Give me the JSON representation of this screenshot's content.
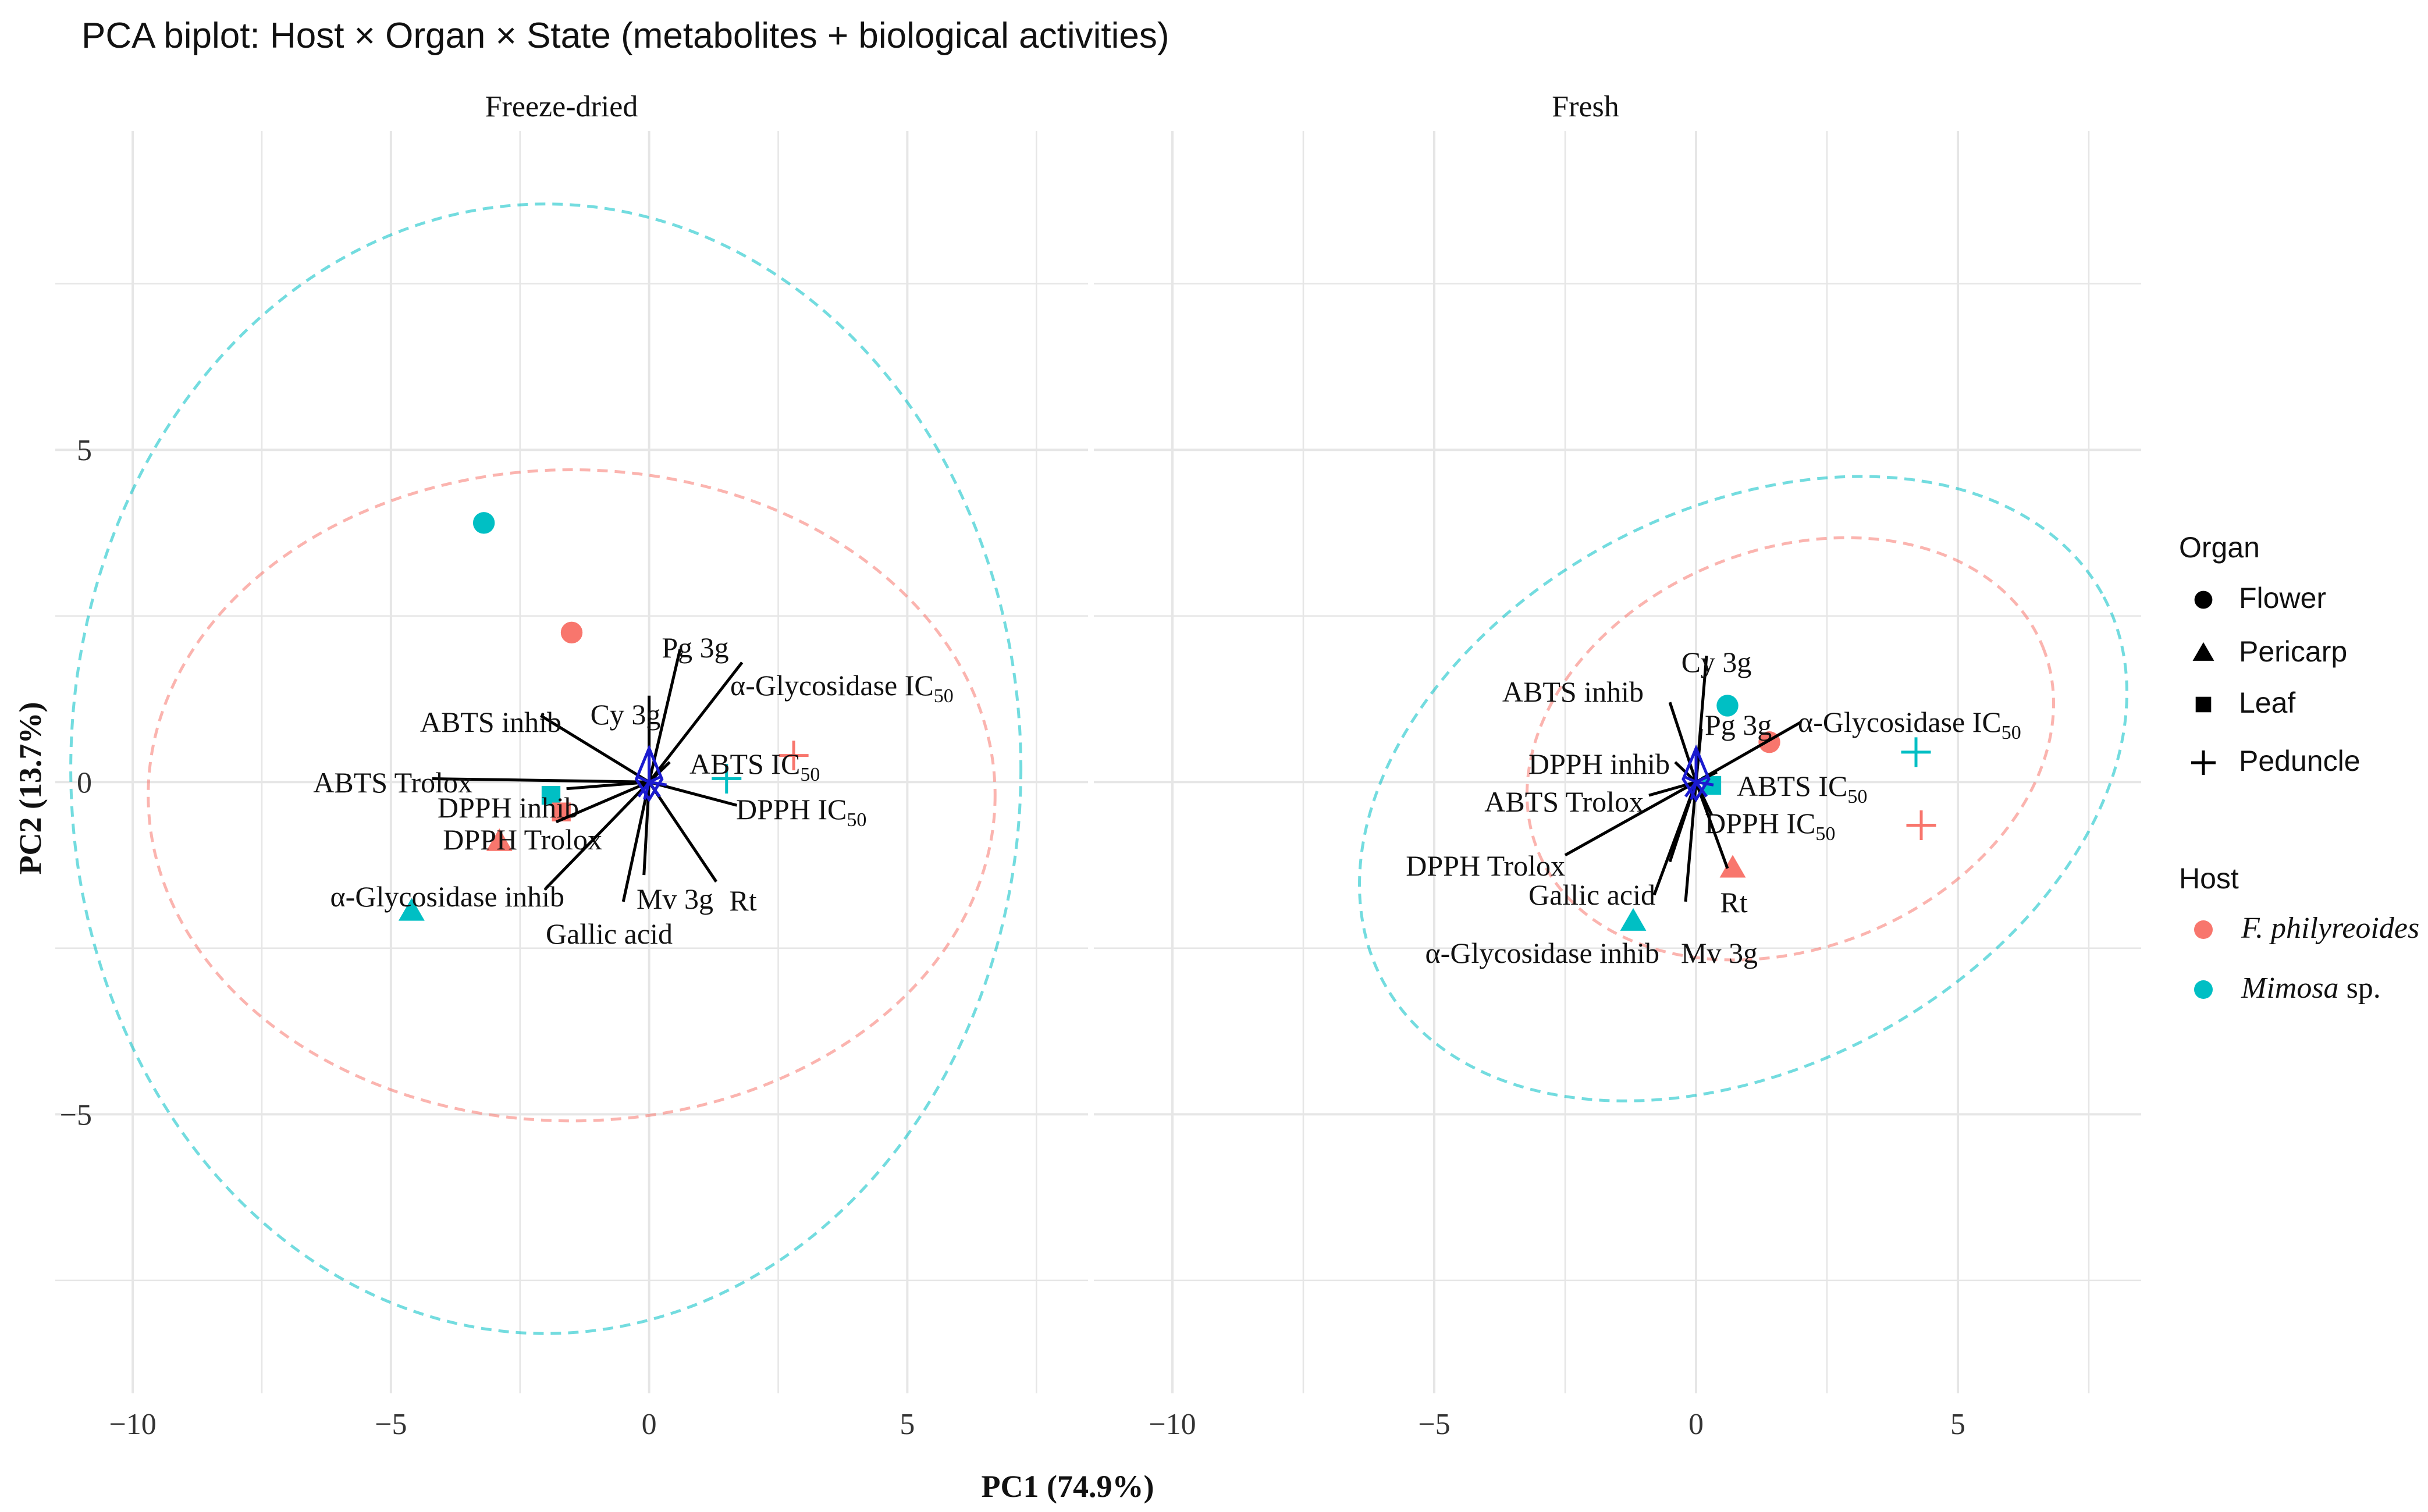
{
  "title": "PCA biplot: Host × Organ × State (metabolites + biological activities)",
  "x_label": "PC1 (74.9%)",
  "y_label": "PC2 (13.7%)",
  "colors": {
    "fphil": "#F8766D",
    "mimosa": "#00BFC4",
    "arrow": "#000000",
    "vector": "#1A1ACF",
    "grid": "#E6E6E6"
  },
  "chart_data": [
    {
      "type": "scatter",
      "subtype": "pca-biplot",
      "facet": "Freeze-dried",
      "xlim": [
        -11.5,
        8.5
      ],
      "ylim": [
        -9.2,
        9.8
      ],
      "x_ticks": [
        {
          "value": -10,
          "label": "−10"
        },
        {
          "value": -5,
          "label": "−5"
        },
        {
          "value": 0,
          "label": "0"
        },
        {
          "value": 5,
          "label": "5"
        }
      ],
      "y_ticks": [
        {
          "value": 5,
          "label": "5"
        },
        {
          "value": 0,
          "label": "0"
        },
        {
          "value": -5,
          "label": "−5"
        }
      ],
      "points": [
        {
          "host": "Mimosa sp.",
          "organ": "Flower",
          "x": -3.2,
          "y": 3.9
        },
        {
          "host": "F. philyreoides",
          "organ": "Flower",
          "x": -1.5,
          "y": 2.25
        },
        {
          "host": "Mimosa sp.",
          "organ": "Leaf",
          "x": -1.9,
          "y": -0.2
        },
        {
          "host": "F. philyreoides",
          "organ": "Leaf",
          "x": -1.7,
          "y": -0.45
        },
        {
          "host": "F. philyreoides",
          "organ": "Pericarp",
          "x": -2.9,
          "y": -0.9
        },
        {
          "host": "Mimosa sp.",
          "organ": "Pericarp",
          "x": -4.6,
          "y": -1.95
        },
        {
          "host": "Mimosa sp.",
          "organ": "Peduncle",
          "x": 1.5,
          "y": 0.05
        },
        {
          "host": "F. philyreoides",
          "organ": "Peduncle",
          "x": 2.8,
          "y": 0.4
        }
      ],
      "ellipses": [
        {
          "host": "F. philyreoides",
          "cx": -1.5,
          "cy": -0.2,
          "rx": 8.2,
          "ry": 4.9,
          "angle": 0
        },
        {
          "host": "Mimosa sp.",
          "cx": -2.0,
          "cy": 0.2,
          "rx": 9.2,
          "ry": 8.5,
          "angle": 0
        }
      ],
      "loadings": [
        {
          "label": "Pg 3g",
          "x": 0.6,
          "y": 2.0
        },
        {
          "label": "Cy 3g",
          "x": 0.0,
          "y": 1.3
        },
        {
          "label": "α-Glycosidase IC50",
          "x": 1.8,
          "y": 1.8
        },
        {
          "label": "ABTS inhib",
          "x": -2.1,
          "y": 1.0
        },
        {
          "label": "ABTS IC50",
          "x": 0.4,
          "y": 0.3
        },
        {
          "label": "ABTS Trolox",
          "x": -4.2,
          "y": 0.05
        },
        {
          "label": "DPPH IC50",
          "x": 1.7,
          "y": -0.35
        },
        {
          "label": "DPPH inhib",
          "x": -1.6,
          "y": -0.1
        },
        {
          "label": "DPPH Trolox",
          "x": -1.8,
          "y": -0.6
        },
        {
          "label": "α-Glycosidase inhib",
          "x": -2.0,
          "y": -1.6
        },
        {
          "label": "Mv 3g",
          "x": -0.1,
          "y": -1.4
        },
        {
          "label": "Rt",
          "x": 1.3,
          "y": -1.5
        },
        {
          "label": "Gallic acid",
          "x": -0.5,
          "y": -1.8
        }
      ]
    },
    {
      "type": "scatter",
      "subtype": "pca-biplot",
      "facet": "Fresh",
      "xlim": [
        -11.5,
        8.5
      ],
      "ylim": [
        -9.2,
        9.8
      ],
      "x_ticks": [
        {
          "value": -10,
          "label": "−10"
        },
        {
          "value": -5,
          "label": "−5"
        },
        {
          "value": 0,
          "label": "0"
        },
        {
          "value": 5,
          "label": "5"
        }
      ],
      "y_ticks": [],
      "points": [
        {
          "host": "Mimosa sp.",
          "organ": "Flower",
          "x": 0.6,
          "y": 1.15
        },
        {
          "host": "F. philyreoides",
          "organ": "Flower",
          "x": 1.4,
          "y": 0.6
        },
        {
          "host": "Mimosa sp.",
          "organ": "Leaf",
          "x": 0.3,
          "y": -0.05
        },
        {
          "host": "F. philyreoides",
          "organ": "Pericarp",
          "x": 0.7,
          "y": -1.3
        },
        {
          "host": "Mimosa sp.",
          "organ": "Pericarp",
          "x": -1.2,
          "y": -2.1
        },
        {
          "host": "Mimosa sp.",
          "organ": "Peduncle",
          "x": 4.2,
          "y": 0.45
        },
        {
          "host": "F. philyreoides",
          "organ": "Peduncle",
          "x": 4.3,
          "y": -0.65
        }
      ],
      "ellipses": [
        {
          "host": "F. philyreoides",
          "cx": 1.8,
          "cy": 0.5,
          "rx": 5.2,
          "ry": 3.0,
          "angle": 22
        },
        {
          "host": "Mimosa sp.",
          "cx": 0.9,
          "cy": -0.1,
          "rx": 7.8,
          "ry": 4.2,
          "angle": 28
        }
      ],
      "loadings": [
        {
          "label": "Cy 3g",
          "x": 0.2,
          "y": 1.9
        },
        {
          "label": "ABTS inhib",
          "x": -0.5,
          "y": 1.2
        },
        {
          "label": "Pg 3g",
          "x": 0.1,
          "y": 0.8
        },
        {
          "label": "α-Glycosidase IC50",
          "x": 2.0,
          "y": 0.9
        },
        {
          "label": "DPPH inhib",
          "x": -0.4,
          "y": 0.3
        },
        {
          "label": "ABTS IC50",
          "x": 0.4,
          "y": 0.15
        },
        {
          "label": "ABTS Trolox",
          "x": -0.9,
          "y": -0.2
        },
        {
          "label": "DPPH IC50",
          "x": 0.3,
          "y": -0.5
        },
        {
          "label": "DPPH Trolox",
          "x": -2.5,
          "y": -1.1
        },
        {
          "label": "Gallic acid",
          "x": -0.5,
          "y": -1.2
        },
        {
          "label": "α-Glycosidase inhib",
          "x": -0.8,
          "y": -1.7
        },
        {
          "label": "Mv 3g",
          "x": -0.2,
          "y": -1.8
        },
        {
          "label": "Rt",
          "x": 0.6,
          "y": -1.3
        }
      ]
    }
  ],
  "legend": {
    "organ_title": "Organ",
    "organs": [
      {
        "name": "Flower",
        "shape": "circle"
      },
      {
        "name": "Pericarp",
        "shape": "triangle"
      },
      {
        "name": "Leaf",
        "shape": "square"
      },
      {
        "name": "Peduncle",
        "shape": "plus"
      }
    ],
    "host_title": "Host",
    "hosts": [
      {
        "name": "F. philyreoides",
        "italic": "F. philyreoides",
        "rest": "",
        "color_key": "fphil"
      },
      {
        "name": "Mimosa sp.",
        "italic": "Mimosa",
        "rest": " sp.",
        "color_key": "mimosa"
      }
    ]
  }
}
